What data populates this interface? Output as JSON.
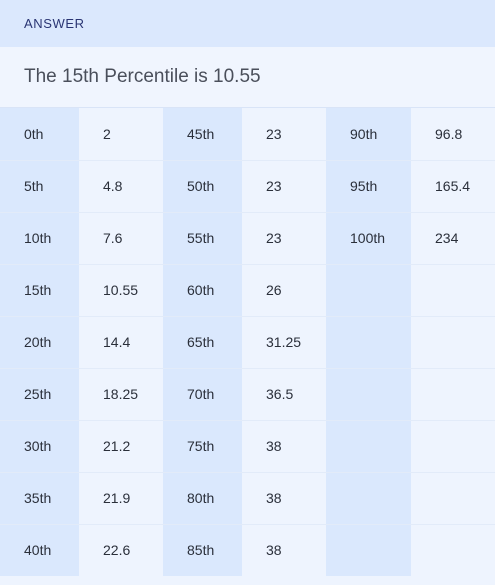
{
  "header": {
    "label": "ANSWER"
  },
  "summary": {
    "text": "The 15th Percentile is 10.55"
  },
  "rows": [
    [
      [
        "0th",
        "2"
      ],
      [
        "45th",
        "23"
      ],
      [
        "90th",
        "96.8"
      ]
    ],
    [
      [
        "5th",
        "4.8"
      ],
      [
        "50th",
        "23"
      ],
      [
        "95th",
        "165.4"
      ]
    ],
    [
      [
        "10th",
        "7.6"
      ],
      [
        "55th",
        "23"
      ],
      [
        "100th",
        "234"
      ]
    ],
    [
      [
        "15th",
        "10.55"
      ],
      [
        "60th",
        "26"
      ],
      [
        "",
        ""
      ]
    ],
    [
      [
        "20th",
        "14.4"
      ],
      [
        "65th",
        "31.25"
      ],
      [
        "",
        ""
      ]
    ],
    [
      [
        "25th",
        "18.25"
      ],
      [
        "70th",
        "36.5"
      ],
      [
        "",
        ""
      ]
    ],
    [
      [
        "30th",
        "21.2"
      ],
      [
        "75th",
        "38"
      ],
      [
        "",
        ""
      ]
    ],
    [
      [
        "35th",
        "21.9"
      ],
      [
        "80th",
        "38"
      ],
      [
        "",
        ""
      ]
    ],
    [
      [
        "40th",
        "22.6"
      ],
      [
        "85th",
        "38"
      ],
      [
        "",
        ""
      ]
    ]
  ]
}
